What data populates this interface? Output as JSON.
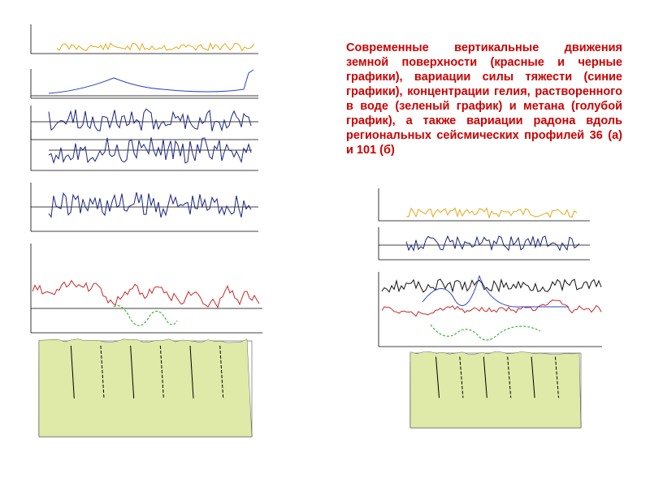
{
  "caption": "Современные вертикальные движения земной поверхности (красные и черные графики), вариации силы тяжести (синие графики), концентрации гелия, растворенного в воде (зеленый график) и метана (голубой график), а также вариации радона вдоль региональных сейсмических профилей 36 (а) и 101 (б)",
  "colors": {
    "helium": "#3cb43c",
    "methane": "#2a45c8",
    "gravity": "#1a237e",
    "movement_red": "#c82828",
    "movement_black": "#111111",
    "radon": "#e6a817",
    "section_layers": [
      "#dfe9a8",
      "#c9e6a0",
      "#7fd7c4",
      "#bfe6f2",
      "#b7a7e6",
      "#e7a6e3",
      "#f0c289",
      "#7a4a18"
    ]
  },
  "figures": [
    {
      "id": "a",
      "panels": [
        "radon",
        "methane",
        "gravity",
        "gravity",
        "gravity",
        "movements",
        "helium",
        "geologic-section"
      ]
    },
    {
      "id": "b",
      "panels": [
        "radon",
        "gravity",
        "movements",
        "movements",
        "helium",
        "geologic-section"
      ]
    }
  ]
}
